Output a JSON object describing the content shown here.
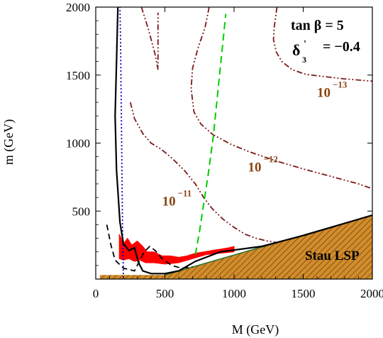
{
  "chart_data": {
    "type": "line",
    "title": "",
    "xlabel": "M (GeV)",
    "ylabel": "m (GeV)",
    "xlim": [
      0,
      2000
    ],
    "ylim": [
      0,
      2000
    ],
    "x_ticks": [
      0,
      500,
      1000,
      1500,
      2000
    ],
    "y_ticks": [
      500,
      1000,
      1500,
      2000
    ],
    "x_tick_labels": [
      "0",
      "500",
      "1000",
      "1500",
      "2000"
    ],
    "y_tick_labels": [
      "500",
      "1000",
      "1500",
      "2000"
    ],
    "grid": false,
    "annotations": {
      "tan_beta_label": "tan β = 5",
      "delta_label": "δ",
      "delta_sub": "3",
      "delta_prime": "'",
      "delta_value": "= −0.4",
      "stau_label": "Stau LSP"
    },
    "contour_labels": [
      {
        "base": "10",
        "exp": "−13",
        "x": 1600,
        "y": 1340
      },
      {
        "base": "10",
        "exp": "−12",
        "x": 1100,
        "y": 790
      },
      {
        "base": "10",
        "exp": "−11",
        "x": 480,
        "y": 540
      }
    ],
    "series": [
      {
        "key": "stau",
        "color": "#d4a017",
        "fill": true,
        "points": [
          [
            30,
            30
          ],
          [
            500,
            30
          ],
          [
            2000,
            470
          ],
          [
            2000,
            0
          ],
          [
            30,
            0
          ]
        ]
      },
      {
        "key": "green_dashed",
        "color": "#00cc00",
        "points": [
          [
            720,
            180
          ],
          [
            750,
            350
          ],
          [
            780,
            550
          ],
          [
            810,
            750
          ],
          [
            850,
            1050
          ],
          [
            880,
            1350
          ],
          [
            910,
            1650
          ],
          [
            940,
            1950
          ]
        ]
      },
      {
        "key": "blue_dotted",
        "color": "#0000cc",
        "points": [
          [
            200,
            10
          ],
          [
            195,
            300
          ],
          [
            190,
            700
          ],
          [
            185,
            1200
          ],
          [
            180,
            1700
          ],
          [
            175,
            2000
          ]
        ]
      },
      {
        "key": "c13_top",
        "color": "#7b1a1a",
        "points": [
          [
            1310,
            2000
          ],
          [
            1290,
            1850
          ],
          [
            1285,
            1760
          ],
          [
            1305,
            1670
          ],
          [
            1345,
            1600
          ],
          [
            1420,
            1540
          ],
          [
            1520,
            1505
          ],
          [
            1660,
            1488
          ],
          [
            1800,
            1472
          ],
          [
            1920,
            1462
          ],
          [
            2000,
            1455
          ]
        ]
      },
      {
        "key": "c13_left",
        "color": "#7b1a1a",
        "points": [
          [
            330,
            2000
          ],
          [
            380,
            1840
          ],
          [
            430,
            1650
          ],
          [
            450,
            1540
          ],
          [
            450,
            1960
          ]
        ]
      },
      {
        "key": "c12",
        "color": "#7b1a1a",
        "points": [
          [
            820,
            2000
          ],
          [
            790,
            1850
          ],
          [
            740,
            1700
          ],
          [
            700,
            1550
          ],
          [
            690,
            1400
          ],
          [
            710,
            1230
          ],
          [
            760,
            1140
          ],
          [
            850,
            1060
          ],
          [
            980,
            990
          ],
          [
            1100,
            940
          ],
          [
            1300,
            870
          ],
          [
            1500,
            810
          ],
          [
            1700,
            755
          ],
          [
            1900,
            700
          ],
          [
            2000,
            665
          ]
        ]
      },
      {
        "key": "c11",
        "color": "#7b1a1a",
        "points": [
          [
            250,
            1300
          ],
          [
            280,
            1180
          ],
          [
            340,
            1070
          ],
          [
            400,
            1000
          ],
          [
            480,
            950
          ],
          [
            560,
            880
          ],
          [
            640,
            800
          ],
          [
            720,
            700
          ],
          [
            780,
            600
          ],
          [
            840,
            520
          ],
          [
            920,
            440
          ],
          [
            1000,
            380
          ],
          [
            1080,
            330
          ],
          [
            1160,
            300
          ],
          [
            1240,
            280
          ],
          [
            1300,
            270
          ],
          [
            1310,
            260
          ]
        ]
      },
      {
        "key": "black_dashed",
        "color": "#000000",
        "points": [
          [
            80,
            400
          ],
          [
            110,
            250
          ],
          [
            140,
            140
          ],
          [
            200,
            80
          ],
          [
            280,
            60
          ],
          [
            350,
            200
          ],
          [
            390,
            240
          ],
          [
            430,
            210
          ],
          [
            480,
            150
          ],
          [
            550,
            100
          ],
          [
            620,
            80
          ],
          [
            700,
            90
          ]
        ]
      },
      {
        "key": "black_solid",
        "color": "#000000",
        "points": [
          [
            160,
            2000
          ],
          [
            150,
            1600
          ],
          [
            140,
            1200
          ],
          [
            150,
            800
          ],
          [
            175,
            420
          ],
          [
            200,
            260
          ],
          [
            240,
            210
          ],
          [
            280,
            230
          ],
          [
            310,
            120
          ],
          [
            340,
            60
          ],
          [
            400,
            40
          ],
          [
            500,
            40
          ],
          [
            600,
            60
          ],
          [
            720,
            130
          ],
          [
            900,
            200
          ],
          [
            1200,
            240
          ],
          [
            1500,
            320
          ],
          [
            2000,
            470
          ]
        ]
      },
      {
        "key": "red",
        "color": "#ff0000",
        "fill": true,
        "points": [
          [
            170,
            330
          ],
          [
            200,
            260
          ],
          [
            230,
            300
          ],
          [
            260,
            250
          ],
          [
            300,
            280
          ],
          [
            340,
            240
          ],
          [
            370,
            200
          ],
          [
            420,
            200
          ],
          [
            480,
            170
          ],
          [
            540,
            170
          ],
          [
            600,
            160
          ],
          [
            660,
            170
          ],
          [
            720,
            190
          ],
          [
            780,
            200
          ],
          [
            840,
            210
          ],
          [
            900,
            220
          ],
          [
            960,
            230
          ],
          [
            1000,
            240
          ],
          [
            1000,
            200
          ],
          [
            900,
            190
          ],
          [
            800,
            180
          ],
          [
            700,
            150
          ],
          [
            600,
            120
          ],
          [
            500,
            110
          ],
          [
            420,
            120
          ],
          [
            360,
            120
          ],
          [
            320,
            140
          ],
          [
            280,
            130
          ],
          [
            240,
            150
          ],
          [
            200,
            140
          ],
          [
            170,
            150
          ]
        ]
      }
    ]
  }
}
